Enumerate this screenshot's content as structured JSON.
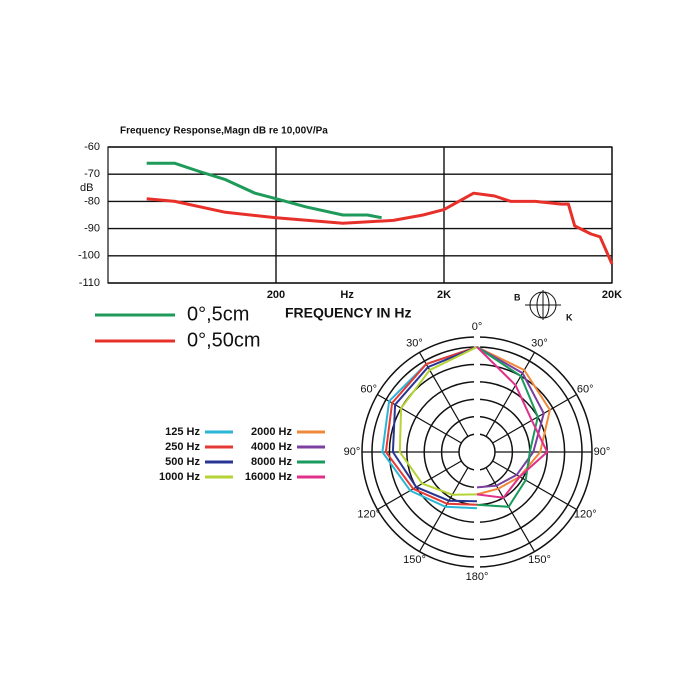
{
  "chart_data": [
    {
      "type": "line",
      "title": "Frequency Response,Magn dB re 10,00V/Pa",
      "ylabel": "dB",
      "xlabel": "FREQUENCY IN Hz",
      "x_unit_label": "Hz",
      "log_x": true,
      "grid": true,
      "xlim": [
        20,
        20000
      ],
      "xticks": [
        200,
        {
          "value": 2000,
          "label": "2K"
        },
        {
          "value": 20000,
          "label": "20K"
        }
      ],
      "ylim": [
        -110,
        -60
      ],
      "yticks": [
        -60,
        -70,
        -80,
        -90,
        -100,
        -110
      ],
      "series": [
        {
          "name": "0°,5cm",
          "color": "#1e9a5a",
          "x": [
            34,
            50,
            70,
            100,
            150,
            200,
            300,
            500,
            700,
            850
          ],
          "values": [
            -66,
            -66,
            -69,
            -72,
            -77,
            -79,
            -82,
            -85,
            -85,
            -86
          ]
        },
        {
          "name": "0°,50cm",
          "color": "#e8302a",
          "x": [
            34,
            50,
            100,
            200,
            500,
            1000,
            1500,
            2000,
            3000,
            4000,
            5000,
            7000,
            10000,
            11000,
            12000,
            15000,
            17000,
            20000
          ],
          "values": [
            -79,
            -80,
            -84,
            -86,
            -88,
            -87,
            -85,
            -83,
            -77,
            -78,
            -80,
            -80,
            -81,
            -81,
            -89,
            -92,
            -93,
            -103
          ]
        }
      ],
      "logo": {
        "left": "B",
        "right": "K"
      }
    },
    {
      "type": "polar",
      "rlim": [
        -25,
        0
      ],
      "rticks": [
        -20,
        -15,
        -10,
        -5,
        0
      ],
      "thetaticks": [
        {
          "value": 0,
          "label": "0°"
        },
        {
          "value": 30,
          "label": "30°"
        },
        {
          "value": 60,
          "label": "60°"
        },
        {
          "value": 90,
          "label": "90°"
        },
        {
          "value": 120,
          "label": "120°"
        },
        {
          "value": 150,
          "label": "150°"
        },
        {
          "value": 180,
          "label": "180°"
        },
        {
          "value": 210,
          "label": "150°"
        },
        {
          "value": 240,
          "label": "120°"
        },
        {
          "value": 270,
          "label": "90°"
        },
        {
          "value": 300,
          "label": "60°"
        },
        {
          "value": 330,
          "label": "30°"
        }
      ],
      "series": [
        {
          "name": "125 Hz",
          "color": "#29b6d6",
          "theta": [
            360,
            330,
            300,
            270,
            240,
            210,
            180
          ],
          "values": [
            0,
            -1,
            -1,
            -3,
            -8,
            -12,
            -14
          ]
        },
        {
          "name": "250 Hz",
          "color": "#e53935",
          "theta": [
            360,
            330,
            300,
            270,
            240,
            210,
            180
          ],
          "values": [
            0,
            -1,
            -2,
            -4,
            -9,
            -13,
            -15
          ]
        },
        {
          "name": "500 Hz",
          "color": "#283593",
          "theta": [
            360,
            330,
            300,
            270,
            240,
            210,
            180
          ],
          "values": [
            0,
            -2,
            -3,
            -6,
            -10,
            -14,
            -16
          ]
        },
        {
          "name": "1000 Hz",
          "color": "#b5d334",
          "theta": [
            360,
            330,
            300,
            270,
            240,
            210,
            180
          ],
          "values": [
            0,
            -3,
            -5,
            -8,
            -12,
            -16,
            -18
          ]
        },
        {
          "name": "2000 Hz",
          "color": "#f0883a",
          "theta": [
            0,
            30,
            60,
            90,
            120,
            150,
            180
          ],
          "values": [
            0,
            -3,
            -6,
            -12,
            -16,
            -18,
            -18
          ]
        },
        {
          "name": "4000 Hz",
          "color": "#7b3fa0",
          "theta": [
            0,
            30,
            60,
            90,
            120,
            150,
            180
          ],
          "values": [
            0,
            -4,
            -8,
            -14,
            -17,
            -19,
            -20
          ]
        },
        {
          "name": "8000 Hz",
          "color": "#1a9a5c",
          "theta": [
            0,
            30,
            60,
            90,
            120,
            150,
            180
          ],
          "values": [
            0,
            -5,
            -10,
            -15,
            -14,
            -12,
            -15
          ]
        },
        {
          "name": "16000 Hz",
          "color": "#e0308a",
          "theta": [
            0,
            30,
            60,
            90,
            120,
            150,
            180
          ],
          "values": [
            0,
            -8,
            -12,
            -10,
            -16,
            -15,
            -18
          ]
        }
      ]
    }
  ]
}
